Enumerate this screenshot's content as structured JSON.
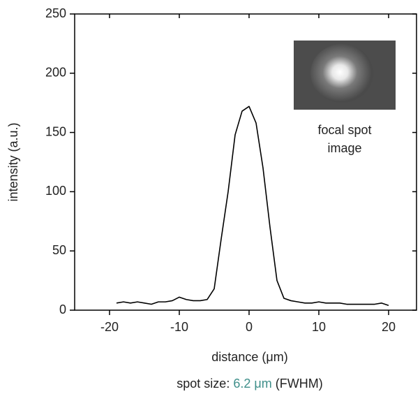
{
  "chart_data": {
    "type": "line",
    "x_label": "distance (μm)",
    "y_label": "intensity (a.u.)",
    "annotation": [
      "focal spot",
      "image"
    ],
    "caption": [
      "spot size:",
      "6.2 μm",
      "(FWHM)"
    ],
    "caption_highlight_color": "#3f8f8a",
    "color": "#000000",
    "xlim": [
      -25,
      24
    ],
    "ylim": [
      0,
      250
    ],
    "xticks": [
      -20,
      -10,
      0,
      10,
      20
    ],
    "yticks": [
      0,
      50,
      100,
      150,
      200,
      250
    ],
    "x": [
      -19,
      -18,
      -17,
      -16,
      -15,
      -14,
      -13,
      -12,
      -11,
      -10,
      -9,
      -8,
      -7,
      -6,
      -5,
      -4,
      -3,
      -2,
      -1,
      0,
      1,
      2,
      3,
      4,
      5,
      6,
      7,
      8,
      9,
      10,
      11,
      12,
      13,
      14,
      15,
      16,
      17,
      18,
      19,
      20
    ],
    "values": [
      6,
      7,
      6,
      7,
      6,
      5,
      7,
      7,
      8,
      11,
      9,
      8,
      8,
      9,
      18,
      60,
      100,
      148,
      168,
      172,
      158,
      120,
      70,
      25,
      10,
      8,
      7,
      6,
      6,
      7,
      6,
      6,
      6,
      5,
      5,
      5,
      5,
      5,
      6,
      4
    ]
  }
}
